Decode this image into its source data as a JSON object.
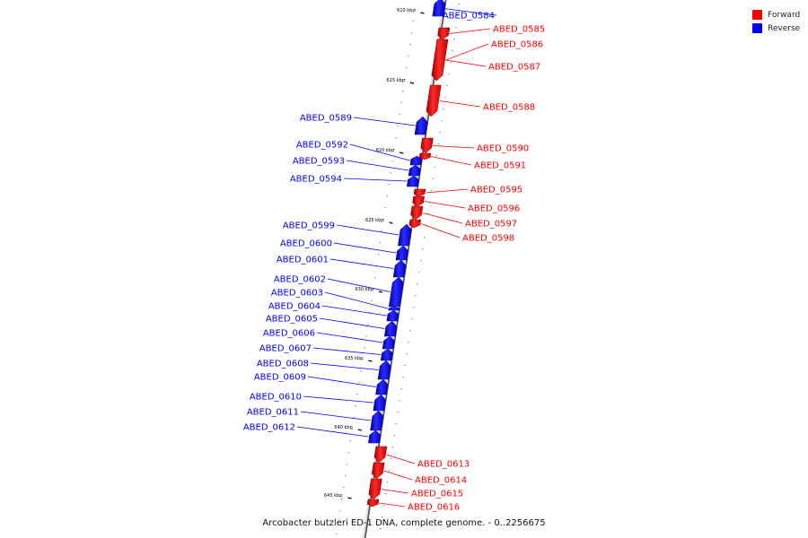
{
  "legend": {
    "forward_label": "Forward",
    "reverse_label": "Reverse",
    "forward_color": "#ff0000",
    "reverse_color": "#0000ff"
  },
  "caption": "Arcobacter butzleri ED-1 DNA, complete genome. - 0..2256675",
  "ticks": [
    "610 kbp",
    "615 kbp",
    "620 kbp",
    "625 kbp",
    "630 kbp",
    "635 kbp",
    "640 kbp",
    "645 kbp"
  ],
  "genes": [
    {
      "id": "ABED_0584",
      "strand": "reverse"
    },
    {
      "id": "ABED_0585",
      "strand": "forward"
    },
    {
      "id": "ABED_0586",
      "strand": "forward"
    },
    {
      "id": "ABED_0587",
      "strand": "forward"
    },
    {
      "id": "ABED_0588",
      "strand": "forward"
    },
    {
      "id": "ABED_0589",
      "strand": "reverse"
    },
    {
      "id": "ABED_0590",
      "strand": "forward"
    },
    {
      "id": "ABED_0591",
      "strand": "forward"
    },
    {
      "id": "ABED_0592",
      "strand": "reverse"
    },
    {
      "id": "ABED_0593",
      "strand": "reverse"
    },
    {
      "id": "ABED_0594",
      "strand": "reverse"
    },
    {
      "id": "ABED_0595",
      "strand": "forward"
    },
    {
      "id": "ABED_0596",
      "strand": "forward"
    },
    {
      "id": "ABED_0597",
      "strand": "forward"
    },
    {
      "id": "ABED_0598",
      "strand": "forward"
    },
    {
      "id": "ABED_0599",
      "strand": "reverse"
    },
    {
      "id": "ABED_0600",
      "strand": "reverse"
    },
    {
      "id": "ABED_0601",
      "strand": "reverse"
    },
    {
      "id": "ABED_0602",
      "strand": "reverse"
    },
    {
      "id": "ABED_0603",
      "strand": "reverse"
    },
    {
      "id": "ABED_0604",
      "strand": "reverse"
    },
    {
      "id": "ABED_0605",
      "strand": "reverse"
    },
    {
      "id": "ABED_0606",
      "strand": "reverse"
    },
    {
      "id": "ABED_0607",
      "strand": "reverse"
    },
    {
      "id": "ABED_0608",
      "strand": "reverse"
    },
    {
      "id": "ABED_0609",
      "strand": "reverse"
    },
    {
      "id": "ABED_0610",
      "strand": "reverse"
    },
    {
      "id": "ABED_0611",
      "strand": "reverse"
    },
    {
      "id": "ABED_0612",
      "strand": "reverse"
    },
    {
      "id": "ABED_0613",
      "strand": "forward"
    },
    {
      "id": "ABED_0614",
      "strand": "forward"
    },
    {
      "id": "ABED_0615",
      "strand": "forward"
    },
    {
      "id": "ABED_0616",
      "strand": "forward"
    }
  ]
}
